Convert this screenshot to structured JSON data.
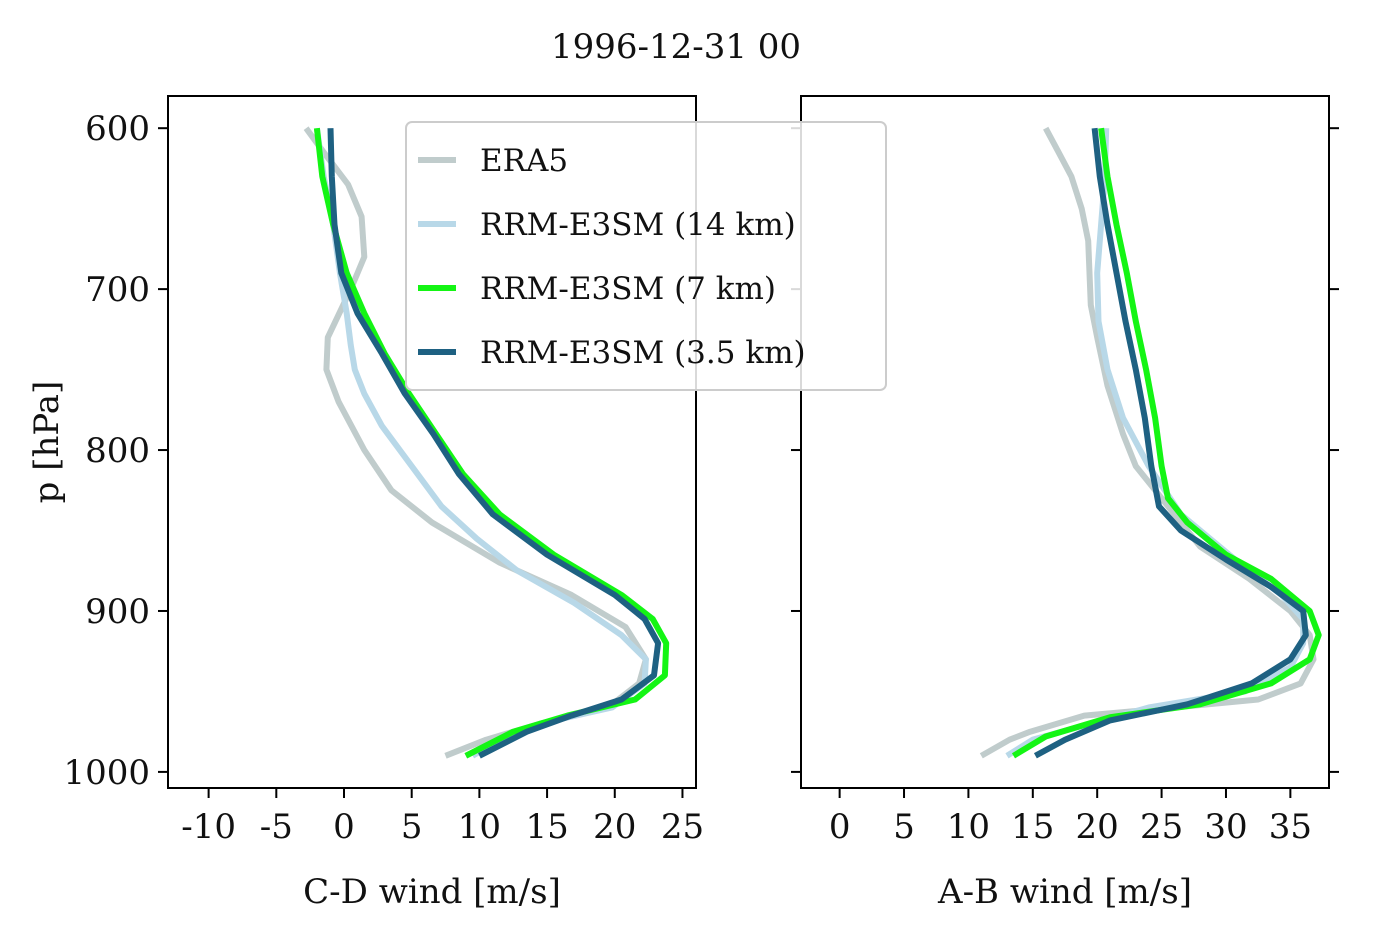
{
  "figure_title": "1996-12-31 00",
  "colors": {
    "ERA5": "#c0cccc",
    "RRM-E3SM (14 km)": "#b8d8e8",
    "RRM-E3SM (7 km)": "#14f514",
    "RRM-E3SM (3.5 km)": "#1e6182"
  },
  "legend": {
    "placement": "upper-right of left panel",
    "entries": [
      "ERA5",
      "RRM-E3SM (14 km)",
      "RRM-E3SM (7 km)",
      "RRM-E3SM (3.5 km)"
    ]
  },
  "chart_data": [
    {
      "type": "line",
      "xlabel": "C-D wind [m/s]",
      "ylabel": "p [hPa]",
      "xlim": [
        -13,
        26
      ],
      "ylim": [
        1010,
        580
      ],
      "y_inverted": true,
      "xticks": [
        -10,
        -5,
        0,
        5,
        10,
        15,
        20,
        25
      ],
      "xtick_labels": [
        "-10",
        "-5",
        "0",
        "5",
        "10",
        "15",
        "20",
        "25"
      ],
      "yticks": [
        600,
        700,
        800,
        900,
        1000
      ],
      "ytick_labels": [
        "600",
        "700",
        "800",
        "900",
        "1000"
      ],
      "grid": false,
      "series": [
        {
          "name": "ERA5",
          "x": [
            -2.8,
            -1.5,
            0.3,
            1.3,
            1.5,
            0.5,
            -1.2,
            -1.3,
            -0.4,
            1.5,
            3.5,
            6.5,
            11.5,
            16.8,
            20.8,
            22.3,
            21.8,
            19.5,
            14.5,
            10.5,
            7.5
          ],
          "y": [
            600,
            615,
            635,
            655,
            680,
            700,
            730,
            750,
            770,
            800,
            825,
            845,
            870,
            890,
            910,
            930,
            945,
            960,
            970,
            980,
            990
          ]
        },
        {
          "name": "RRM-E3SM (14 km)",
          "x": [
            -2.0,
            -1.5,
            -0.8,
            -0.3,
            0.2,
            0.5,
            0.8,
            1.5,
            2.8,
            5.0,
            7.2,
            9.8,
            12.8,
            17.0,
            20.5,
            22.3,
            22.2,
            19.8,
            14.5,
            11.5,
            9.5
          ],
          "y": [
            600,
            630,
            660,
            690,
            715,
            735,
            750,
            765,
            785,
            810,
            835,
            855,
            875,
            895,
            915,
            930,
            945,
            960,
            970,
            980,
            990
          ]
        },
        {
          "name": "RRM-E3SM (7 km)",
          "x": [
            -2.0,
            -1.6,
            -0.8,
            0.2,
            1.5,
            3.0,
            4.8,
            6.8,
            8.8,
            11.5,
            15.5,
            20.5,
            22.8,
            23.8,
            23.7,
            21.5,
            16.5,
            12.5,
            9.0
          ],
          "y": [
            600,
            630,
            660,
            690,
            715,
            740,
            765,
            790,
            815,
            840,
            865,
            890,
            905,
            920,
            940,
            955,
            965,
            975,
            990
          ]
        },
        {
          "name": "RRM-E3SM (3.5 km)",
          "x": [
            -1.0,
            -0.9,
            -0.7,
            -0.2,
            1.0,
            2.8,
            4.5,
            6.6,
            8.5,
            11.0,
            15.0,
            20.0,
            22.2,
            23.2,
            22.9,
            20.5,
            16.8,
            13.5,
            10.0
          ],
          "y": [
            600,
            630,
            660,
            690,
            715,
            740,
            765,
            790,
            815,
            840,
            865,
            890,
            905,
            920,
            940,
            955,
            965,
            975,
            990
          ]
        }
      ]
    },
    {
      "type": "line",
      "xlabel": "A-B wind [m/s]",
      "xlim": [
        -3,
        38
      ],
      "ylim": [
        1010,
        580
      ],
      "y_inverted": true,
      "xticks": [
        0,
        5,
        10,
        15,
        20,
        25,
        30,
        35
      ],
      "xtick_labels": [
        "0",
        "5",
        "10",
        "15",
        "20",
        "25",
        "30",
        "35"
      ],
      "yticks": [
        600,
        700,
        800,
        900,
        1000
      ],
      "grid": false,
      "series": [
        {
          "name": "ERA5",
          "x": [
            16.0,
            17.0,
            18.0,
            18.8,
            19.3,
            19.4,
            19.5,
            20.0,
            20.8,
            22.0,
            23.0,
            25.0,
            28.0,
            31.8,
            35.0,
            36.5,
            36.8,
            35.8,
            32.5,
            26.0,
            19.0,
            14.8,
            13.2,
            11.0
          ],
          "y": [
            600,
            615,
            630,
            650,
            670,
            690,
            710,
            730,
            760,
            790,
            810,
            830,
            860,
            880,
            900,
            915,
            930,
            945,
            955,
            960,
            965,
            975,
            980,
            990
          ]
        },
        {
          "name": "RRM-E3SM (14 km)",
          "x": [
            20.7,
            20.6,
            20.3,
            20.0,
            20.1,
            20.8,
            22.0,
            24.0,
            26.5,
            31.0,
            34.3,
            36.0,
            36.0,
            35.0,
            31.5,
            24.0,
            15.0,
            13.0
          ],
          "y": [
            600,
            630,
            660,
            690,
            720,
            750,
            780,
            810,
            840,
            870,
            890,
            905,
            920,
            935,
            950,
            960,
            980,
            990
          ]
        },
        {
          "name": "RRM-E3SM (7 km)",
          "x": [
            20.3,
            20.8,
            21.5,
            22.3,
            23.0,
            23.8,
            24.5,
            25.0,
            25.5,
            27.0,
            30.0,
            33.5,
            36.5,
            37.2,
            36.5,
            33.5,
            28.0,
            21.0,
            16.0,
            13.5
          ],
          "y": [
            600,
            630,
            660,
            690,
            720,
            750,
            780,
            810,
            830,
            845,
            865,
            880,
            900,
            915,
            930,
            945,
            958,
            966,
            978,
            990
          ]
        },
        {
          "name": "RRM-E3SM (3.5 km)",
          "x": [
            19.8,
            20.2,
            20.8,
            21.5,
            22.2,
            23.0,
            23.7,
            24.2,
            24.8,
            26.5,
            30.0,
            33.5,
            36.0,
            36.2,
            35.0,
            32.0,
            27.0,
            21.0,
            17.5,
            15.2
          ],
          "y": [
            600,
            630,
            660,
            690,
            720,
            750,
            780,
            810,
            835,
            850,
            868,
            885,
            900,
            915,
            930,
            945,
            958,
            968,
            980,
            990
          ]
        }
      ]
    }
  ]
}
